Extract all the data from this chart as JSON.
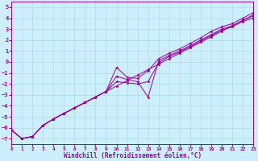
{
  "xlabel": "Windchill (Refroidissement éolien,°C)",
  "bg_color": "#cceeff",
  "line_color": "#990099",
  "marker_color": "#990099",
  "xlim": [
    0,
    23
  ],
  "ylim": [
    -7.5,
    5.5
  ],
  "xticks": [
    0,
    1,
    2,
    3,
    4,
    5,
    6,
    7,
    8,
    9,
    10,
    11,
    12,
    13,
    14,
    15,
    16,
    17,
    18,
    19,
    20,
    21,
    22,
    23
  ],
  "yticks": [
    -7,
    -6,
    -5,
    -4,
    -3,
    -2,
    -1,
    0,
    1,
    2,
    3,
    4,
    5
  ],
  "grid_color": "#aadddd",
  "series": [
    {
      "x": [
        0,
        1,
        2,
        3,
        4,
        5,
        6,
        7,
        8,
        9,
        10,
        11,
        12,
        13,
        14,
        15,
        16,
        17,
        18,
        19,
        20,
        21,
        22,
        23
      ],
      "y": [
        -6.2,
        -7.0,
        -6.8,
        -5.8,
        -5.2,
        -4.7,
        -4.2,
        -3.7,
        -3.2,
        -2.7,
        -0.5,
        -1.4,
        -1.5,
        -0.8,
        0.3,
        0.8,
        1.2,
        1.7,
        2.2,
        2.8,
        3.2,
        3.5,
        4.0,
        4.5
      ]
    },
    {
      "x": [
        0,
        1,
        2,
        3,
        4,
        5,
        6,
        7,
        8,
        9,
        10,
        11,
        12,
        13,
        14,
        15,
        16,
        17,
        18,
        19,
        20,
        21,
        22,
        23
      ],
      "y": [
        -6.2,
        -7.0,
        -6.8,
        -5.8,
        -5.2,
        -4.7,
        -4.2,
        -3.7,
        -3.2,
        -2.7,
        -1.3,
        -1.6,
        -1.8,
        -3.2,
        0.1,
        0.6,
        1.0,
        1.5,
        2.0,
        2.5,
        3.0,
        3.3,
        3.8,
        4.2
      ]
    },
    {
      "x": [
        0,
        1,
        2,
        3,
        4,
        5,
        6,
        7,
        8,
        9,
        10,
        11,
        12,
        13,
        14,
        15,
        16,
        17,
        18,
        19,
        20,
        21,
        22,
        23
      ],
      "y": [
        -6.2,
        -7.0,
        -6.8,
        -5.8,
        -5.2,
        -4.7,
        -4.2,
        -3.7,
        -3.2,
        -2.7,
        -1.8,
        -1.9,
        -2.0,
        -1.8,
        -0.1,
        0.5,
        0.9,
        1.4,
        1.9,
        2.4,
        2.9,
        3.2,
        3.7,
        4.0
      ]
    },
    {
      "x": [
        0,
        1,
        2,
        3,
        4,
        5,
        6,
        7,
        8,
        9,
        10,
        11,
        12,
        13,
        14,
        15,
        16,
        17,
        18,
        19,
        20,
        21,
        22,
        23
      ],
      "y": [
        -6.2,
        -7.0,
        -6.8,
        -5.8,
        -5.2,
        -4.7,
        -4.2,
        -3.7,
        -3.2,
        -2.7,
        -2.2,
        -1.7,
        -1.2,
        -0.7,
        -0.2,
        0.3,
        0.8,
        1.3,
        1.8,
        2.3,
        2.8,
        3.3,
        3.8,
        4.3
      ]
    }
  ]
}
